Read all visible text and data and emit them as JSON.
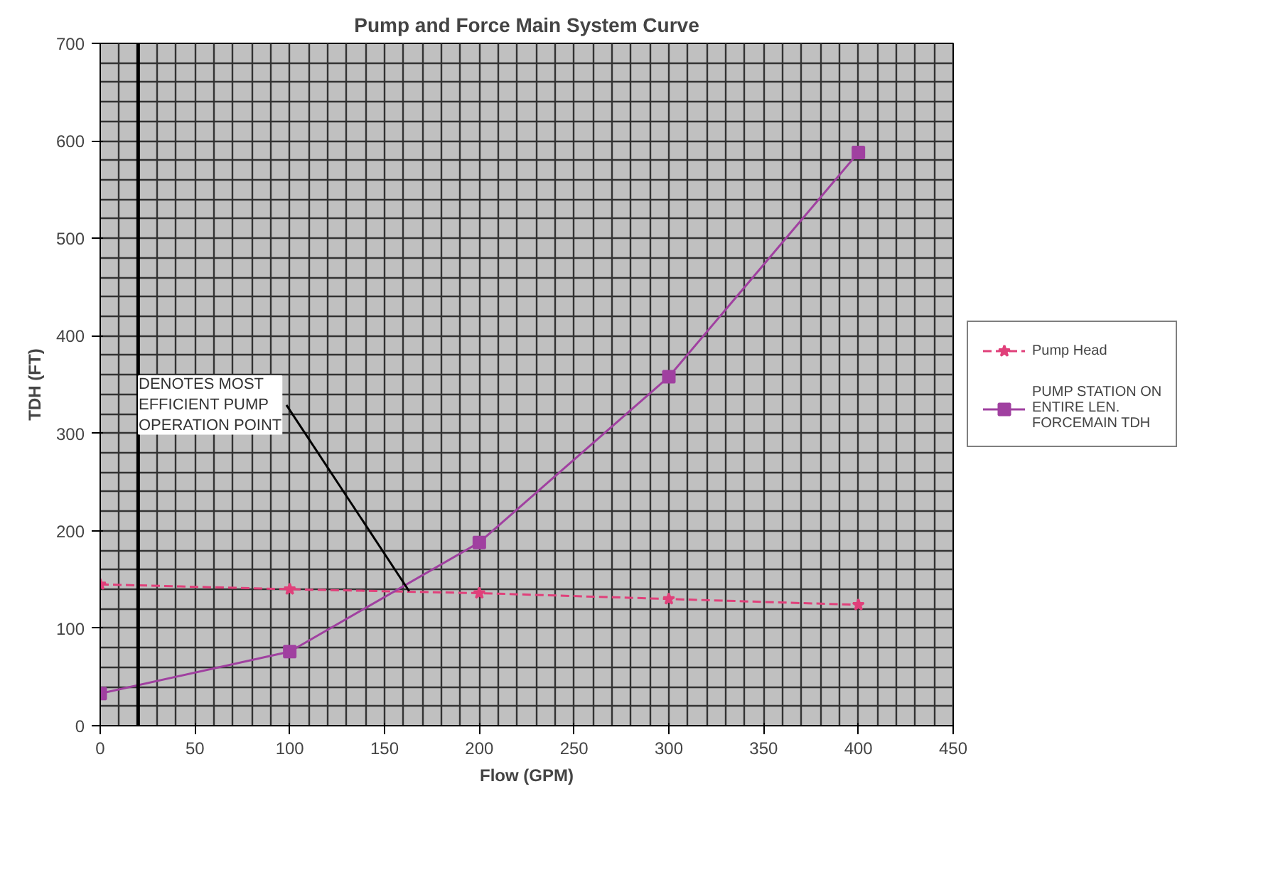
{
  "chart_data": {
    "type": "line",
    "title": "Pump and Force Main System Curve",
    "xlabel": "Flow (GPM)",
    "ylabel": "TDH (FT)",
    "x": [
      0,
      100,
      200,
      300,
      400
    ],
    "series": [
      {
        "name": "Pump Head",
        "color": "#e0407a",
        "values": [
          145,
          140,
          136,
          130,
          124
        ],
        "marker": "star",
        "line_style": "dashed"
      },
      {
        "name": "PUMP STATION ON ENTIRE LEN. FORCEMAIN TDH",
        "color": "#a040a0",
        "values": [
          33,
          76,
          188,
          358,
          588
        ],
        "marker": "square",
        "line_style": "solid"
      }
    ],
    "xlim": [
      0,
      450
    ],
    "xticks": [
      0,
      {
        "value": 10,
        "label": null
      },
      {
        "value": 20,
        "label": null
      },
      {
        "value": 30,
        "label": null
      },
      {
        "value": 40,
        "label": null
      },
      50,
      {
        "value": 60,
        "label": null
      },
      {
        "value": 70,
        "label": null
      },
      {
        "value": 80,
        "label": null
      },
      {
        "value": 90,
        "label": null
      },
      100,
      {
        "value": 110,
        "label": null
      },
      {
        "value": 120,
        "label": null
      },
      {
        "value": 130,
        "label": null
      },
      {
        "value": 140,
        "label": null
      },
      150,
      {
        "value": 160,
        "label": null
      },
      {
        "value": 170,
        "label": null
      },
      {
        "value": 180,
        "label": null
      },
      {
        "value": 190,
        "label": null
      },
      200,
      {
        "value": 210,
        "label": null
      },
      {
        "value": 220,
        "label": null
      },
      {
        "value": 230,
        "label": null
      },
      {
        "value": 240,
        "label": null
      },
      250,
      {
        "value": 260,
        "label": null
      },
      {
        "value": 270,
        "label": null
      },
      {
        "value": 280,
        "label": null
      },
      {
        "value": 290,
        "label": null
      },
      300,
      {
        "value": 310,
        "label": null
      },
      {
        "value": 320,
        "label": null
      },
      {
        "value": 330,
        "label": null
      },
      {
        "value": 340,
        "label": null
      },
      350,
      {
        "value": 360,
        "label": null
      },
      {
        "value": 370,
        "label": null
      },
      {
        "value": 380,
        "label": null
      },
      {
        "value": 390,
        "label": null
      },
      400,
      {
        "value": 410,
        "label": null
      },
      {
        "value": 420,
        "label": null
      },
      {
        "value": 430,
        "label": null
      },
      {
        "value": 440,
        "label": null
      },
      450
    ],
    "ylim": [
      0,
      700
    ],
    "yticks": [
      0,
      {
        "value": 20,
        "label": null
      },
      {
        "value": 40,
        "label": null
      },
      {
        "value": 60,
        "label": null
      },
      {
        "value": 80,
        "label": null
      },
      100,
      {
        "value": 120,
        "label": null
      },
      {
        "value": 140,
        "label": null
      },
      {
        "value": 160,
        "label": null
      },
      {
        "value": 180,
        "label": null
      },
      200,
      {
        "value": 220,
        "label": null
      },
      {
        "value": 240,
        "label": null
      },
      {
        "value": 260,
        "label": null
      },
      {
        "value": 280,
        "label": null
      },
      300,
      {
        "value": 320,
        "label": null
      },
      {
        "value": 340,
        "label": null
      },
      {
        "value": 360,
        "label": null
      },
      {
        "value": 380,
        "label": null
      },
      400,
      {
        "value": 420,
        "label": null
      },
      {
        "value": 440,
        "label": null
      },
      {
        "value": 460,
        "label": null
      },
      {
        "value": 480,
        "label": null
      },
      500,
      {
        "value": 520,
        "label": null
      },
      {
        "value": 540,
        "label": null
      },
      {
        "value": 560,
        "label": null
      },
      {
        "value": 580,
        "label": null
      },
      600,
      {
        "value": 620,
        "label": null
      },
      {
        "value": 640,
        "label": null
      },
      {
        "value": 660,
        "label": null
      },
      {
        "value": 680,
        "label": null
      },
      700
    ],
    "grid": true,
    "legend": "right",
    "ref_lines": [
      {
        "axis": "x",
        "value": 20,
        "color": "#000000"
      }
    ],
    "annotations": [
      {
        "text": "DENOTES MOST EFFICIENT PUMP OPERATION POINT",
        "x": 163,
        "y": 138
      }
    ]
  }
}
